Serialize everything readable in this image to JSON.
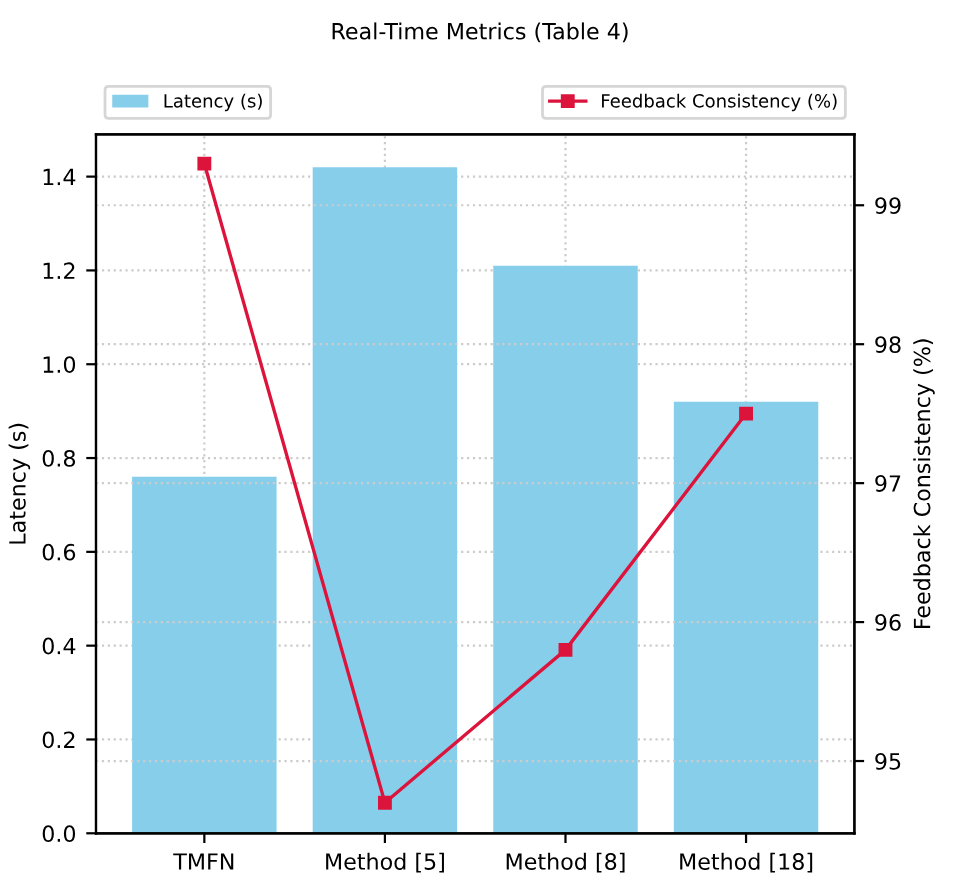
{
  "chart_data": {
    "type": "bar",
    "title": "Real-Time Metrics (Table 4)",
    "categories": [
      "TMFN",
      "Method [5]",
      "Method [8]",
      "Method [18]"
    ],
    "series": [
      {
        "name": "Latency (s)",
        "color": "#87ceeb",
        "values": [
          0.76,
          1.42,
          1.21,
          0.92
        ]
      },
      {
        "name": "Feedback Consistency (%)",
        "type": "line",
        "axis": "y2",
        "color": "#dc143c",
        "marker": "square",
        "values": [
          99.3,
          94.7,
          95.8,
          97.5
        ]
      }
    ],
    "ylabel": "Latency (s)",
    "y2label": "Feedback Consistency (%)",
    "ylim": [
      0,
      1.49
    ],
    "yticks": [
      {
        "value": 0,
        "label": "0.0"
      },
      0.2,
      0.4,
      0.6,
      0.8,
      {
        "value": 1,
        "label": "1.0"
      },
      1.2,
      1.4
    ],
    "y2lim": [
      94.48,
      99.51
    ],
    "y2ticks": [
      95,
      96,
      97,
      98,
      99
    ],
    "grid": true,
    "legend": "top"
  }
}
